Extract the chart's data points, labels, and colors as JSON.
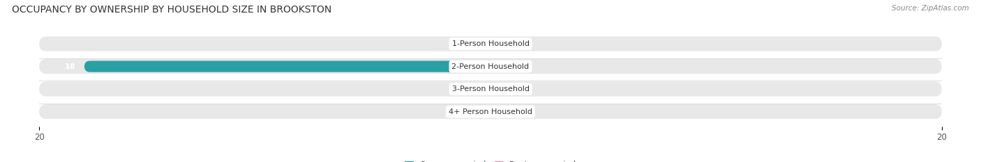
{
  "title": "OCCUPANCY BY OWNERSHIP BY HOUSEHOLD SIZE IN BROOKSTON",
  "source": "Source: ZipAtlas.com",
  "categories": [
    "1-Person Household",
    "2-Person Household",
    "3-Person Household",
    "4+ Person Household"
  ],
  "owner_occupied": [
    0,
    18,
    0,
    0
  ],
  "renter_occupied": [
    0,
    0,
    0,
    0
  ],
  "owner_color": "#3bbfc4",
  "owner_color_dark": "#2aa0a5",
  "renter_color": "#f08aaa",
  "bar_bg_color": "#e8e8e8",
  "xlim": [
    -20,
    20
  ],
  "min_stub": 1.2,
  "title_fontsize": 10,
  "source_fontsize": 7.5,
  "label_fontsize": 8,
  "tick_fontsize": 8.5,
  "legend_fontsize": 8.5,
  "figsize": [
    14.06,
    2.33
  ],
  "dpi": 100
}
